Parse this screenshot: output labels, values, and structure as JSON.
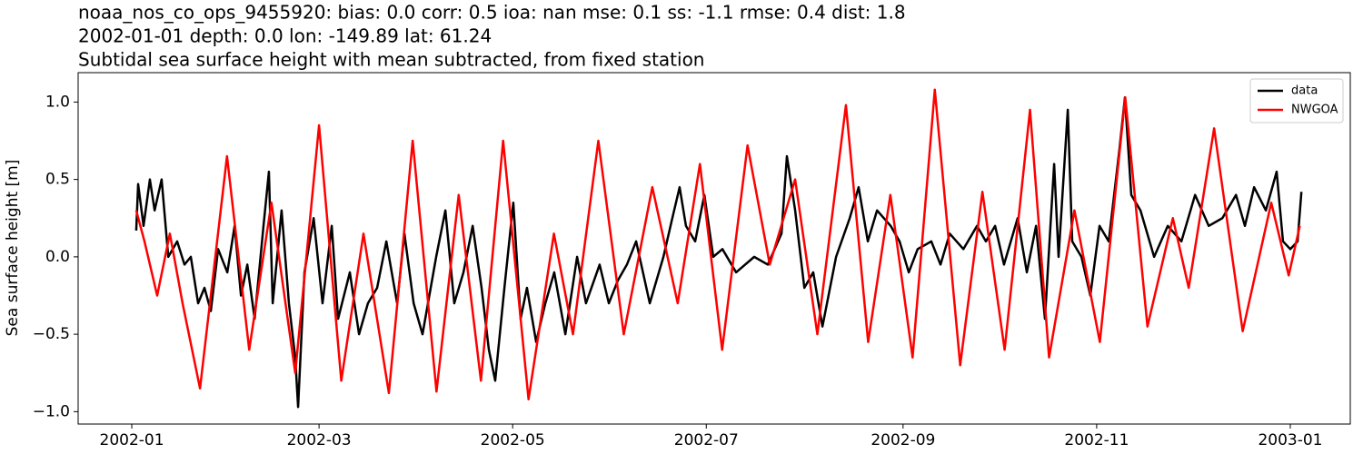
{
  "chart_data": {
    "type": "line",
    "title": "noaa_nos_co_ops_9455920: bias: 0.0  corr: 0.5  ioa: nan  mse: 0.1  ss: -1.1  rmse: 0.4  dist: 1.8",
    "subtitle": "2002-01-01 depth: 0.0 lon: -149.89 lat: 61.24",
    "subtitle2": "Subtidal sea surface height with mean subtracted, from fixed station",
    "y_label": "Sea surface height [m]",
    "xlim": [
      -16.9,
      383.9
    ],
    "xticks": [
      {
        "value": 0,
        "label": "2002-01"
      },
      {
        "value": 59,
        "label": "2002-03"
      },
      {
        "value": 120,
        "label": "2002-05"
      },
      {
        "value": 181,
        "label": "2002-07"
      },
      {
        "value": 243,
        "label": "2002-09"
      },
      {
        "value": 304,
        "label": "2002-11"
      },
      {
        "value": 365,
        "label": "2003-01"
      }
    ],
    "ylim": [
      -1.08,
      1.19
    ],
    "yticks": [
      {
        "value": -1.0,
        "label": "−1.0"
      },
      {
        "value": -0.5,
        "label": "−0.5"
      },
      {
        "value": 0.0,
        "label": "0.0"
      },
      0.5,
      {
        "value": 1.0,
        "label": "1.0"
      }
    ],
    "legend": "upper right",
    "series": [
      {
        "name": "data",
        "color": "#000000",
        "x": [
          1.4,
          2,
          3.7,
          5.7,
          7.2,
          9.4,
          11.5,
          14.3,
          16.6,
          18.6,
          20.9,
          22.9,
          24.9,
          27.2,
          30.1,
          32.4,
          34.4,
          36.4,
          38.7,
          41.5,
          43.2,
          44.4,
          47.2,
          49.5,
          51.5,
          52.4,
          54.4,
          57.3,
          60.1,
          63,
          65,
          68.7,
          71.6,
          74.4,
          77.3,
          80.2,
          83.6,
          85.9,
          88.8,
          91.6,
          95.9,
          98.8,
          101.6,
          104.5,
          107.4,
          110.2,
          112.5,
          114.5,
          117.4,
          120.2,
          122.5,
          124.5,
          127.4,
          130.3,
          133.1,
          136.6,
          140.3,
          143.1,
          147.4,
          150.3,
          153.2,
          156,
          158.9,
          163.2,
          167.5,
          170.3,
          172.6,
          174.6,
          177.5,
          180.4,
          183.2,
          186.1,
          190.4,
          196.1,
          200.4,
          204.7,
          206.4,
          209,
          211.9,
          214.7,
          217.6,
          221.9,
          226.2,
          229,
          231.9,
          234.8,
          239.1,
          241.9,
          244.8,
          247.6,
          251.9,
          254.8,
          257.7,
          262,
          266.3,
          269.1,
          272,
          274.8,
          279.1,
          282,
          284.9,
          287.7,
          290.6,
          292,
          294.9,
          296.3,
          299.2,
          302,
          304.9,
          307.8,
          311.2,
          312.9,
          314.9,
          317.8,
          322.1,
          326.4,
          330.7,
          335,
          339.3,
          343.6,
          347.9,
          350.7,
          353.6,
          357.3,
          360.7,
          362.7,
          365,
          367.3,
          368.5
        ],
        "values": [
          0.17,
          0.47,
          0.2,
          0.5,
          0.3,
          0.5,
          0.0,
          0.1,
          -0.05,
          0.0,
          -0.3,
          -0.2,
          -0.35,
          0.05,
          -0.1,
          0.2,
          -0.25,
          -0.05,
          -0.4,
          0.2,
          0.55,
          -0.3,
          0.3,
          -0.3,
          -0.65,
          -0.97,
          -0.1,
          0.25,
          -0.3,
          0.2,
          -0.4,
          -0.1,
          -0.5,
          -0.3,
          -0.2,
          0.1,
          -0.3,
          0.15,
          -0.3,
          -0.5,
          0.0,
          0.3,
          -0.3,
          -0.1,
          0.2,
          -0.2,
          -0.6,
          -0.8,
          -0.2,
          0.35,
          -0.4,
          -0.2,
          -0.55,
          -0.3,
          -0.1,
          -0.5,
          0.0,
          -0.3,
          -0.05,
          -0.3,
          -0.15,
          -0.05,
          0.1,
          -0.3,
          0.0,
          0.25,
          0.45,
          0.2,
          0.1,
          0.4,
          0.0,
          0.05,
          -0.1,
          0.0,
          -0.05,
          0.15,
          0.65,
          0.3,
          -0.2,
          -0.1,
          -0.45,
          0.0,
          0.25,
          0.45,
          0.1,
          0.3,
          0.2,
          0.1,
          -0.1,
          0.05,
          0.1,
          -0.05,
          0.15,
          0.05,
          0.2,
          0.1,
          0.2,
          -0.05,
          0.25,
          -0.1,
          0.2,
          -0.4,
          0.6,
          0.0,
          0.95,
          0.1,
          0.0,
          -0.25,
          0.2,
          0.1,
          0.7,
          1.03,
          0.4,
          0.3,
          0.0,
          0.2,
          0.1,
          0.4,
          0.2,
          0.25,
          0.4,
          0.2,
          0.45,
          0.3,
          0.55,
          0.1,
          0.05,
          0.1,
          0.42
        ]
      },
      {
        "name": "NWGOA",
        "color": "#ff0000",
        "x": [
          1.4,
          4,
          8,
          12,
          16,
          21.5,
          30,
          37,
          44,
          51.5,
          59,
          66,
          73,
          81,
          88.5,
          96,
          103,
          110,
          117,
          125,
          133,
          139,
          147,
          155,
          164,
          172,
          179,
          186,
          194,
          201,
          209,
          216,
          225,
          232,
          239,
          246,
          253,
          261,
          268,
          275,
          283,
          289,
          297,
          305,
          313,
          320,
          328,
          333,
          341,
          350,
          359,
          364.5,
          368
        ],
        "values": [
          0.3,
          0.1,
          -0.25,
          0.15,
          -0.3,
          -0.85,
          0.65,
          -0.6,
          0.35,
          -0.75,
          0.85,
          -0.8,
          0.15,
          -0.88,
          0.75,
          -0.87,
          0.4,
          -0.8,
          0.75,
          -0.92,
          0.15,
          -0.5,
          0.75,
          -0.5,
          0.45,
          -0.3,
          0.6,
          -0.6,
          0.72,
          -0.05,
          0.5,
          -0.5,
          0.98,
          -0.55,
          0.4,
          -0.65,
          1.08,
          -0.7,
          0.42,
          -0.6,
          0.95,
          -0.65,
          0.3,
          -0.55,
          1.03,
          -0.45,
          0.25,
          -0.2,
          0.83,
          -0.48,
          0.35,
          -0.12,
          0.2
        ]
      }
    ]
  }
}
